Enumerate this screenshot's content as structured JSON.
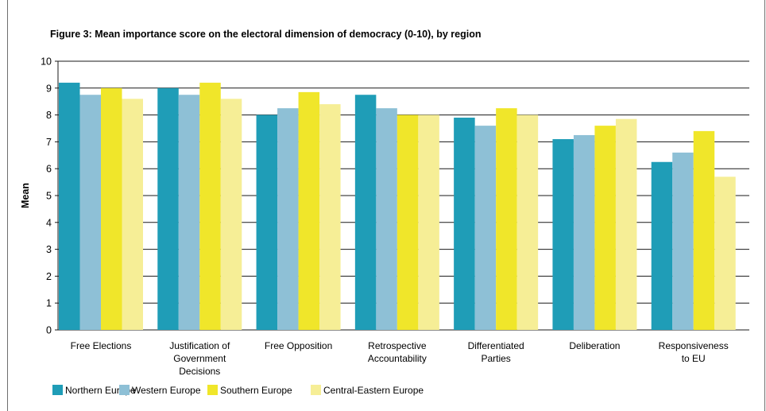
{
  "chart_data": {
    "type": "bar",
    "title": "Figure 3: Mean importance score on the electoral dimension of democracy (0-10), by region",
    "ylabel": "Mean",
    "xlabel": "",
    "ylim": [
      0,
      10
    ],
    "yticks": [
      "0",
      "1",
      "2",
      "3",
      "4",
      "5",
      "6",
      "7",
      "8",
      "9",
      "10"
    ],
    "grid": true,
    "legend_position": "bottom",
    "categories": [
      [
        "Free Elections"
      ],
      [
        "Justification of",
        "Government",
        "Decisions"
      ],
      [
        "Free Opposition"
      ],
      [
        "Retrospective",
        "Accountability"
      ],
      [
        "Differentiated",
        "Parties"
      ],
      [
        "Deliberation"
      ],
      [
        "Responsiveness",
        "to EU"
      ]
    ],
    "series": [
      {
        "name": "Northern Europe",
        "color": "#1f9db7",
        "values": [
          9.2,
          9.0,
          8.0,
          8.75,
          7.9,
          7.1,
          6.25
        ]
      },
      {
        "name": "Western Europe",
        "color": "#8ec0d6",
        "values": [
          8.75,
          8.75,
          8.25,
          8.25,
          7.6,
          7.25,
          6.6
        ]
      },
      {
        "name": "Southern Europe",
        "color": "#f0e62a",
        "values": [
          9.0,
          9.2,
          8.85,
          8.0,
          8.25,
          7.6,
          7.4
        ]
      },
      {
        "name": "Central-Eastern Europe",
        "color": "#f6ee96",
        "values": [
          8.6,
          8.6,
          8.4,
          8.0,
          8.0,
          7.85,
          5.7
        ]
      }
    ]
  }
}
